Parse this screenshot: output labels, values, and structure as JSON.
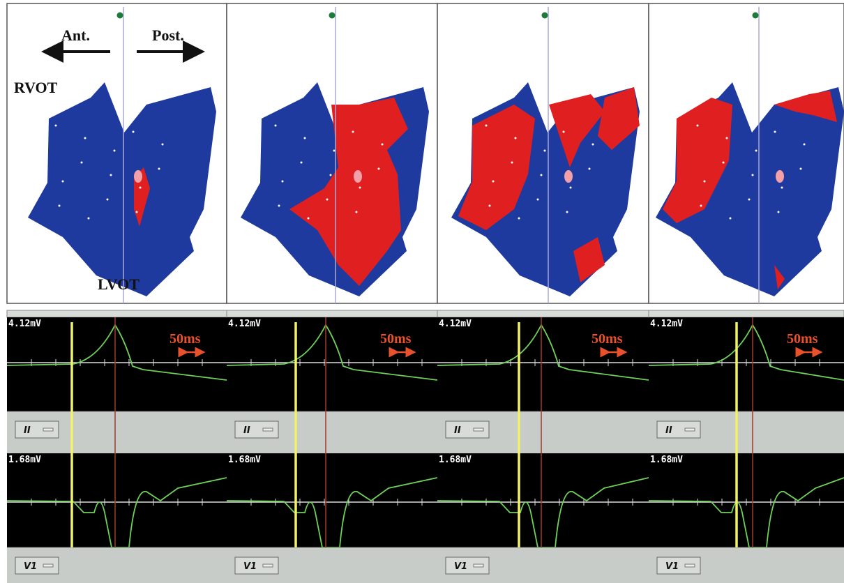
{
  "labels": {
    "anterior": "Ant.",
    "posterior": "Post.",
    "rvot": "RVOT",
    "lvot": "LVOT"
  },
  "panels": [
    {
      "amplitude_top": "4.12mV",
      "time_scale": "50ms",
      "lead_top": "II",
      "amplitude_bottom": "1.68mV",
      "lead_bottom": "V1"
    },
    {
      "amplitude_top": "4.12mV",
      "time_scale": "50ms",
      "lead_top": "II",
      "amplitude_bottom": "1.68mV",
      "lead_bottom": "V1"
    },
    {
      "amplitude_top": "4.12mV",
      "time_scale": "50ms",
      "lead_top": "II",
      "amplitude_bottom": "1.68mV",
      "lead_bottom": "V1"
    },
    {
      "amplitude_top": "4.12mV",
      "time_scale": "50ms",
      "lead_top": "II",
      "amplitude_bottom": "1.68mV",
      "lead_bottom": "V1"
    }
  ]
}
